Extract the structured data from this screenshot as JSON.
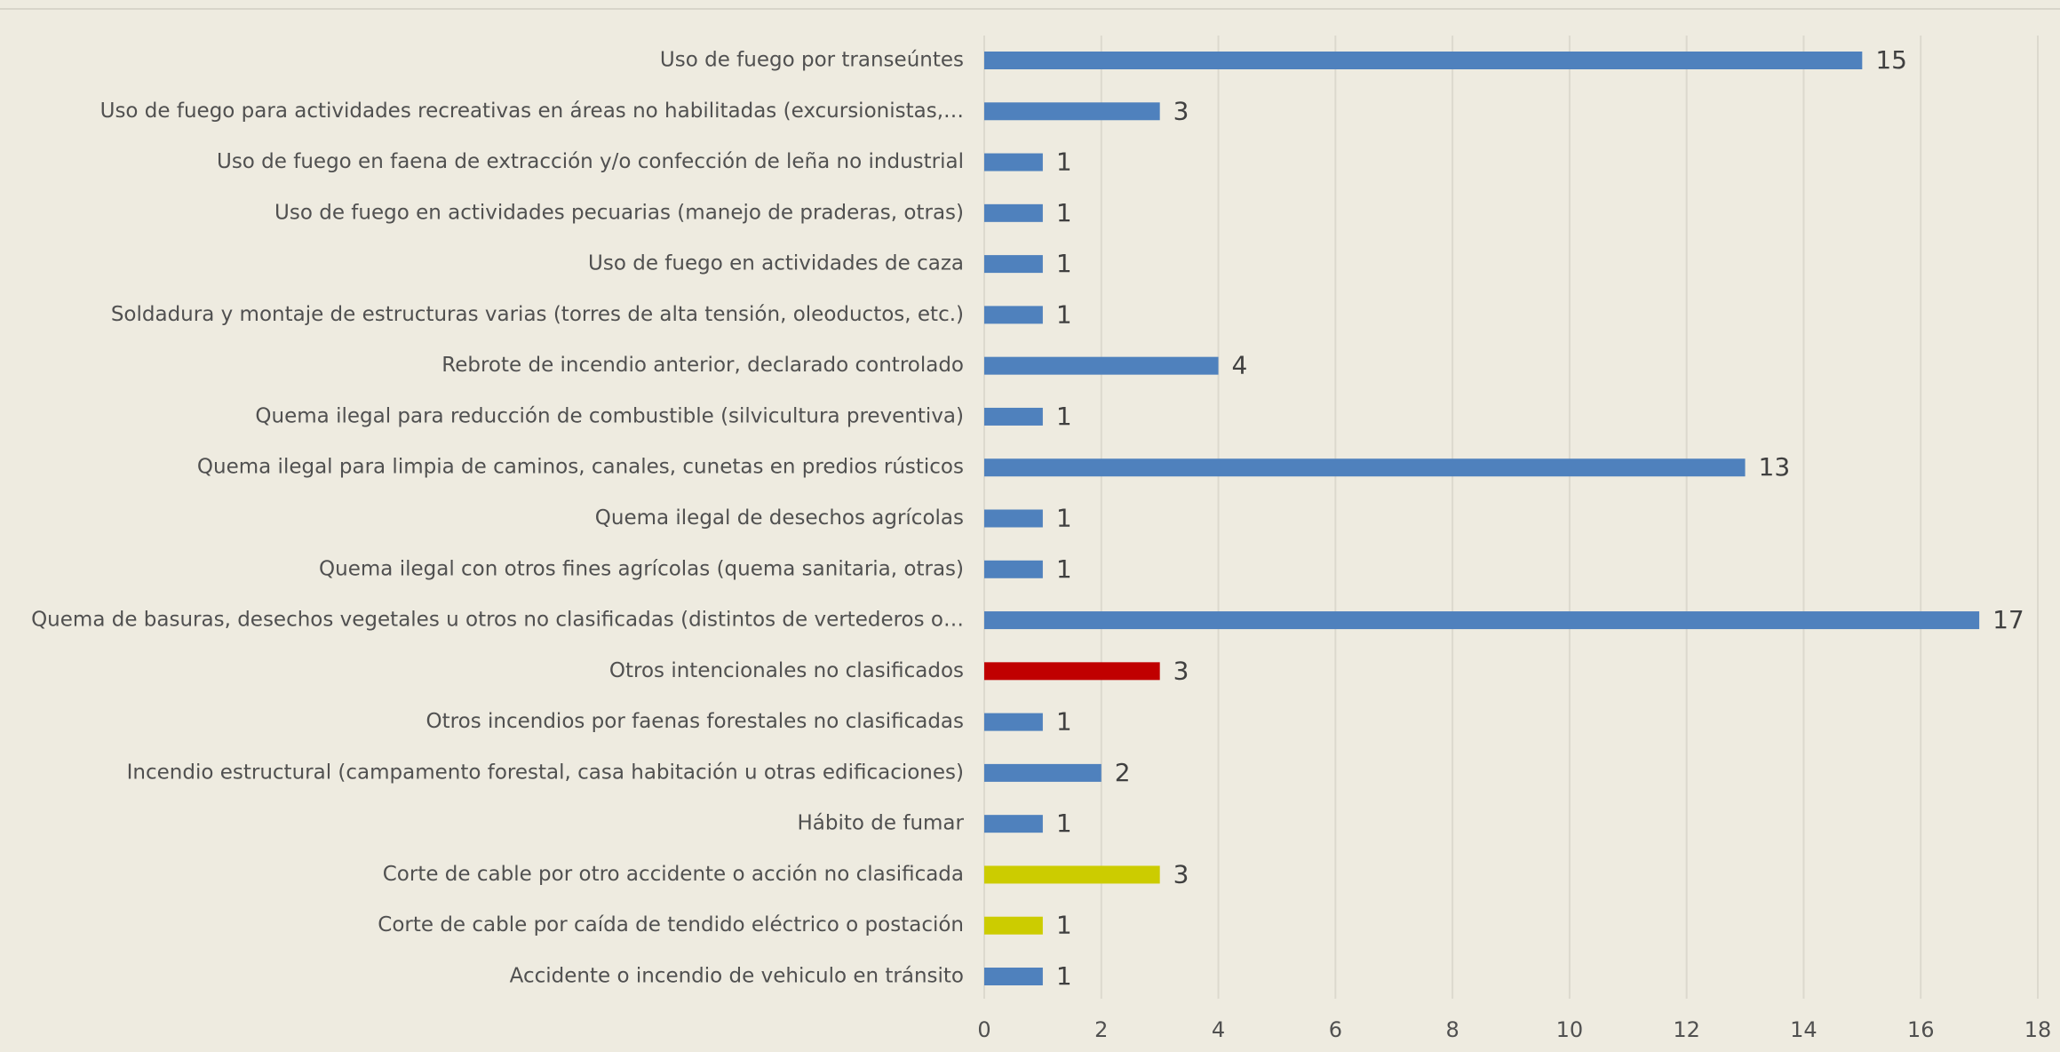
{
  "chart_data": {
    "type": "barh",
    "categories": [
      "Uso de fuego por transeúntes",
      "Uso de fuego para actividades recreativas en áreas no habilitadas (excursionistas,…",
      "Uso de fuego en faena de extracción y/o confección de leña no industrial",
      "Uso de fuego en actividades pecuarias (manejo de praderas, otras)",
      "Uso de fuego en actividades de caza",
      "Soldadura y montaje de estructuras varias (torres de alta tensión, oleoductos, etc.)",
      "Rebrote de incendio anterior, declarado controlado",
      "Quema ilegal para reducción de combustible (silvicultura preventiva)",
      "Quema ilegal para limpia de caminos, canales, cunetas en predios rústicos",
      "Quema ilegal de desechos agrícolas",
      "Quema ilegal con otros fines agrícolas (quema sanitaria, otras)",
      "Quema de basuras, desechos vegetales u otros no clasificadas (distintos de vertederos o…",
      "Otros intencionales no clasificados",
      "Otros incendios por faenas forestales no clasificadas",
      "Incendio estructural (campamento forestal, casa habitación u otras edificaciones)",
      "Hábito de fumar",
      "Corte de cable por otro accidente o acción no clasificada",
      "Corte de cable por caída de tendido eléctrico o postación",
      "Accidente o incendio de vehiculo en tránsito"
    ],
    "values": [
      15,
      3,
      1,
      1,
      1,
      1,
      4,
      1,
      13,
      1,
      1,
      17,
      3,
      1,
      2,
      1,
      3,
      1,
      1
    ],
    "colors": [
      "#4f81bd",
      "#4f81bd",
      "#4f81bd",
      "#4f81bd",
      "#4f81bd",
      "#4f81bd",
      "#4f81bd",
      "#4f81bd",
      "#4f81bd",
      "#4f81bd",
      "#4f81bd",
      "#4f81bd",
      "#c00000",
      "#4f81bd",
      "#4f81bd",
      "#4f81bd",
      "#cccc00",
      "#cccc00",
      "#4f81bd"
    ],
    "xlim": [
      0,
      18
    ],
    "xticks": [
      0,
      2,
      4,
      6,
      8,
      10,
      12,
      14,
      16,
      18
    ],
    "grid": true
  }
}
